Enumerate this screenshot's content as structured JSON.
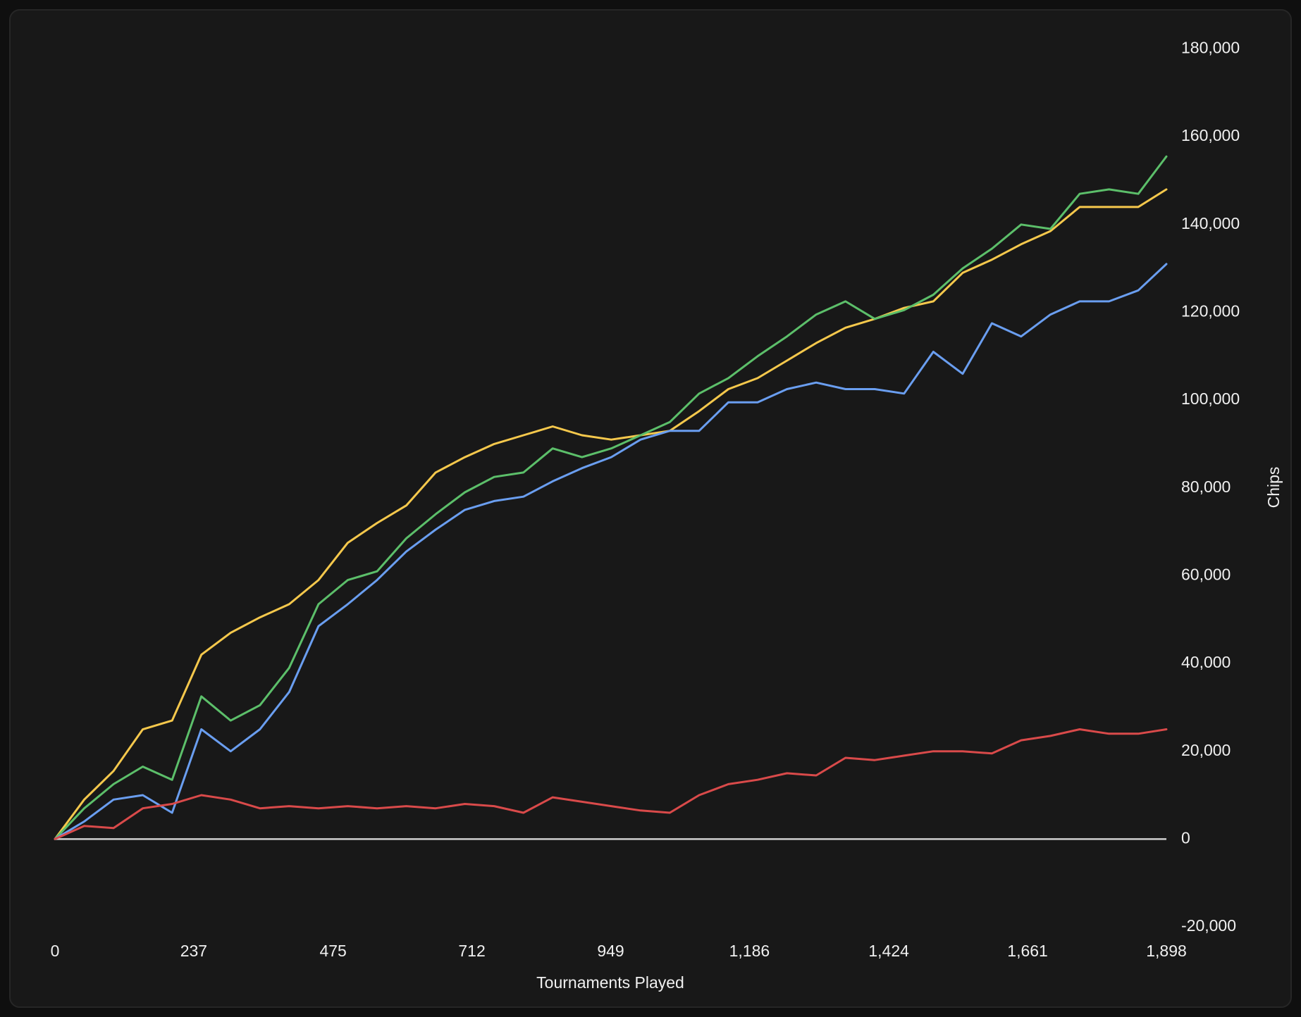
{
  "chart_data": {
    "type": "line",
    "x_label": "Tournaments Played",
    "y_label": "Chips",
    "x": [
      0,
      50,
      100,
      150,
      200,
      250,
      300,
      350,
      400,
      450,
      500,
      550,
      600,
      650,
      700,
      750,
      800,
      850,
      900,
      950,
      1000,
      1050,
      1100,
      1150,
      1200,
      1250,
      1300,
      1350,
      1400,
      1450,
      1500,
      1550,
      1600,
      1650,
      1700,
      1750,
      1800,
      1850,
      1898
    ],
    "series": [
      {
        "color": "#f5c84c",
        "values": [
          0,
          9000,
          15500,
          25000,
          27000,
          42000,
          47000,
          50500,
          53500,
          59000,
          67500,
          72000,
          76000,
          83500,
          87000,
          90000,
          92000,
          94000,
          92000,
          91000,
          92000,
          93000,
          97500,
          102500,
          105000,
          109000,
          113000,
          116500,
          118500,
          121000,
          122500,
          129000,
          132000,
          135500,
          138500,
          144000,
          144000,
          144000,
          148000
        ]
      },
      {
        "color": "#5cbf6a",
        "values": [
          0,
          7000,
          12500,
          16500,
          13500,
          32500,
          27000,
          30500,
          39000,
          53500,
          59000,
          61000,
          68500,
          74000,
          79000,
          82500,
          83500,
          89000,
          87000,
          89000,
          92000,
          95000,
          101500,
          105000,
          110000,
          114500,
          119500,
          122500,
          118500,
          120500,
          124000,
          130000,
          134500,
          140000,
          139000,
          147000,
          148000,
          147000,
          155500
        ]
      },
      {
        "color": "#6a9ef0",
        "values": [
          0,
          4000,
          9000,
          10000,
          6000,
          25000,
          20000,
          25000,
          33500,
          48500,
          53500,
          59000,
          65500,
          70500,
          75000,
          77000,
          78000,
          81500,
          84500,
          87000,
          91000,
          93000,
          93000,
          99500,
          99500,
          102500,
          104000,
          102500,
          102500,
          101500,
          111000,
          106000,
          117500,
          114500,
          119500,
          122500,
          122500,
          125000,
          131000
        ]
      },
      {
        "color": "#d94a4a",
        "values": [
          0,
          3000,
          2500,
          7000,
          8000,
          10000,
          9000,
          7000,
          7500,
          7000,
          7500,
          7000,
          7500,
          7000,
          8000,
          7500,
          6000,
          9500,
          8500,
          7500,
          6500,
          6000,
          10000,
          12500,
          13500,
          15000,
          14500,
          18500,
          18000,
          19000,
          20000,
          20000,
          19500,
          22500,
          23500,
          25000,
          24000,
          24000,
          25000
        ]
      }
    ],
    "xlim": [
      0,
      1898
    ],
    "xticks": [
      0,
      237,
      475,
      712,
      949,
      {
        "value": 1186,
        "label": "1,186"
      },
      {
        "value": 1424,
        "label": "1,424"
      },
      {
        "value": 1661,
        "label": "1,661"
      },
      {
        "value": 1898,
        "label": "1,898"
      }
    ],
    "ylim": [
      -20000,
      180000
    ],
    "yticks": [
      {
        "value": -20000,
        "label": "-20,000"
      },
      0,
      {
        "value": 20000,
        "label": "20,000"
      },
      {
        "value": 40000,
        "label": "40,000"
      },
      {
        "value": 60000,
        "label": "60,000"
      },
      {
        "value": 80000,
        "label": "80,000"
      },
      {
        "value": 100000,
        "label": "100,000"
      },
      {
        "value": 120000,
        "label": "120,000"
      },
      {
        "value": 140000,
        "label": "140,000"
      },
      {
        "value": 160000,
        "label": "160,000"
      },
      {
        "value": 180000,
        "label": "180,000"
      }
    ],
    "grid": false
  }
}
